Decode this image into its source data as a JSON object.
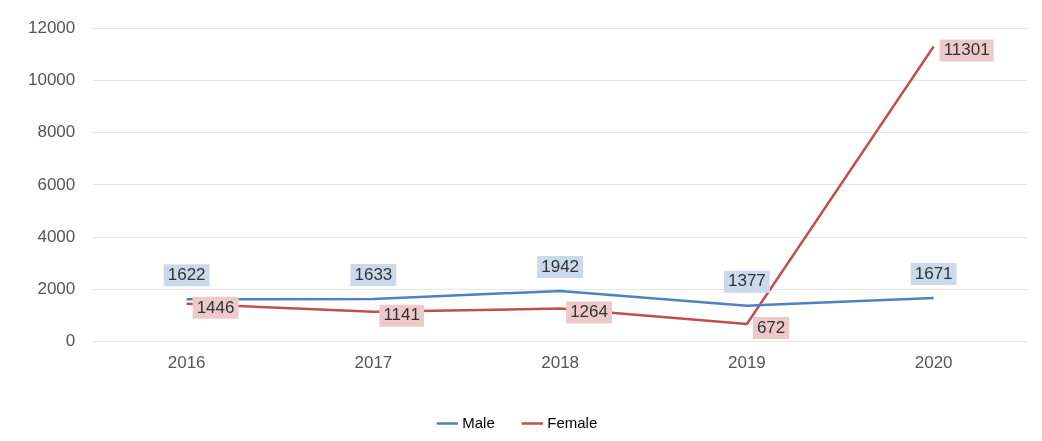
{
  "chart_data": {
    "type": "line",
    "categories": [
      "2016",
      "2017",
      "2018",
      "2019",
      "2020"
    ],
    "series": [
      {
        "name": "Male",
        "color": "#4f81bd",
        "values": [
          1622,
          1633,
          1942,
          1377,
          1671
        ]
      },
      {
        "name": "Female",
        "color": "#c0504d",
        "values": [
          1446,
          1141,
          1264,
          672,
          11301
        ]
      }
    ],
    "ylim": [
      0,
      12000
    ],
    "yticks": [
      0,
      2000,
      4000,
      6000,
      8000,
      10000,
      12000
    ],
    "grid": "y",
    "legend": "bottom",
    "marker": "none",
    "line_style": "solid",
    "data_labels": true
  }
}
